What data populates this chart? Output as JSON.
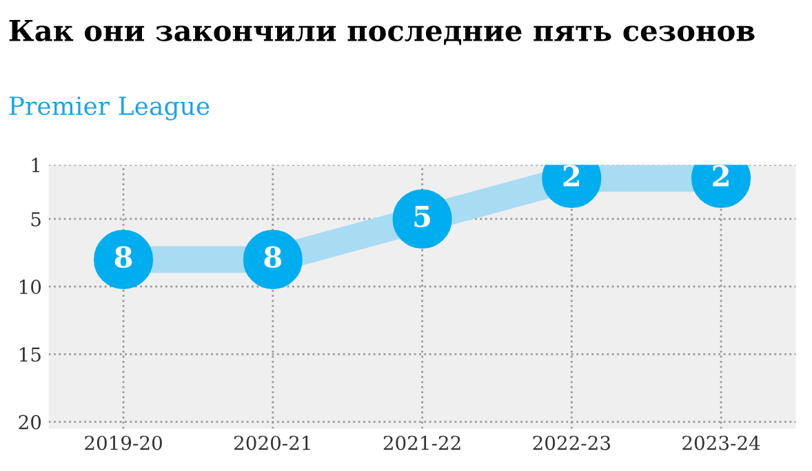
{
  "chart_data": {
    "type": "line",
    "title": "Как они закончили последние пять сезонов",
    "subtitle": "Premier League",
    "categories": [
      "2019-20",
      "2020-21",
      "2021-22",
      "2022-23",
      "2023-24"
    ],
    "series": [
      {
        "color": "#00aeef",
        "values": [
          8,
          8,
          5,
          2,
          2
        ]
      }
    ],
    "ylim": [
      20.5,
      1
    ],
    "yticks": [
      1,
      5,
      10,
      15,
      20
    ],
    "grid": true,
    "marker": "circle",
    "data_labels": true,
    "legend": false
  }
}
